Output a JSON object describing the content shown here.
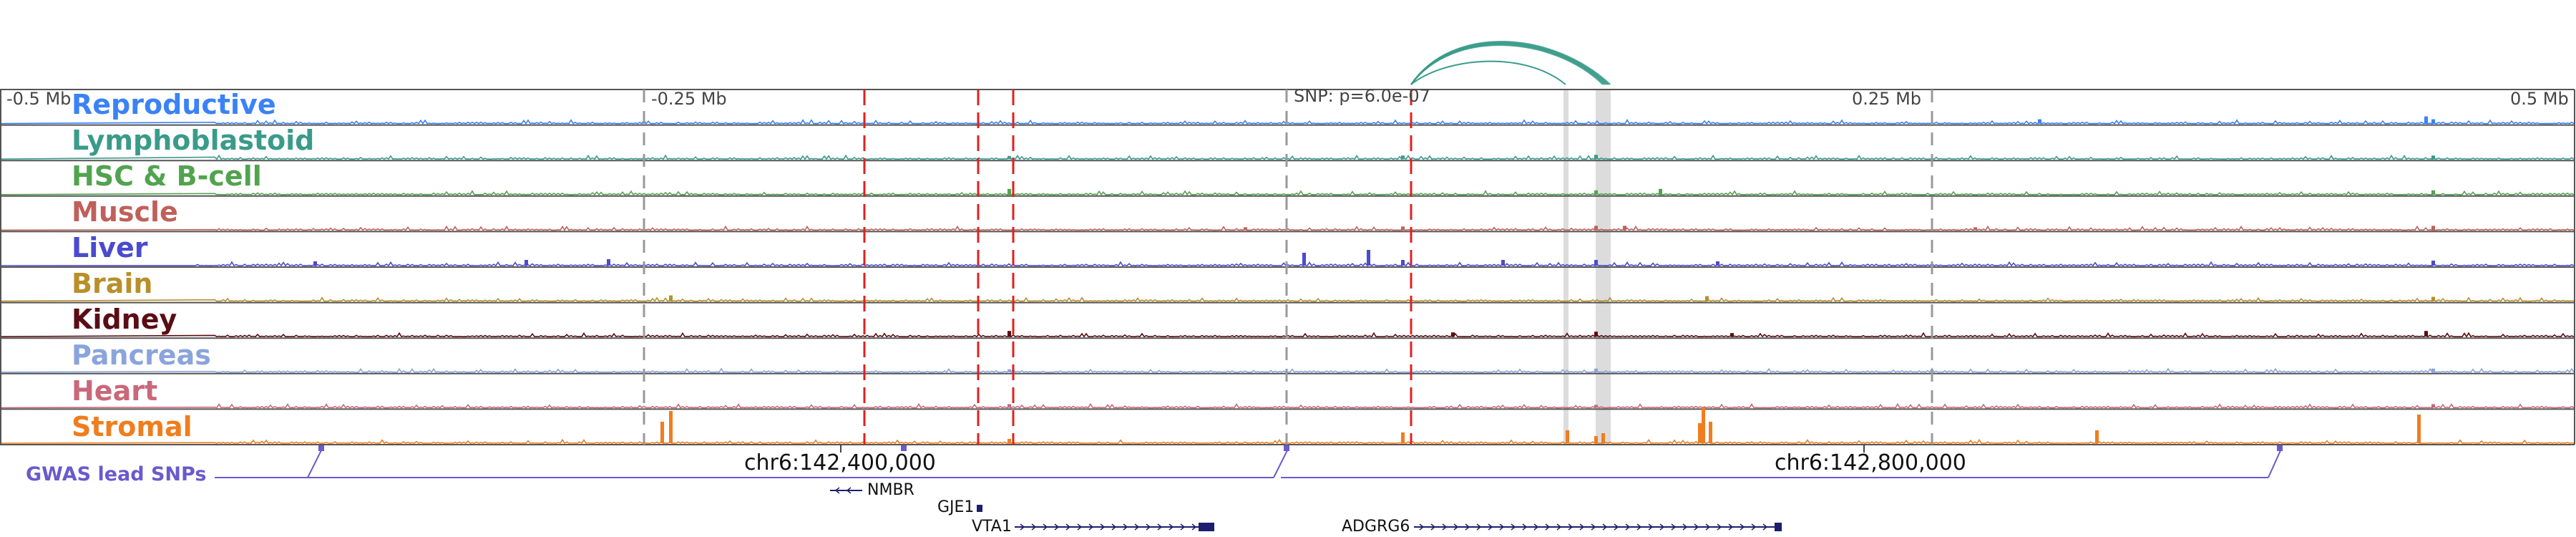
{
  "axis": {
    "left": "-0.5 Mb",
    "left_mid": "-0.25 Mb",
    "snp": "SNP: p=6.0e-07",
    "right_mid": "0.25 Mb",
    "right": "0.5 Mb"
  },
  "tracks": [
    {
      "name": "Reproductive",
      "color": "#3b82f6"
    },
    {
      "name": "Lymphoblastoid",
      "color": "#3a9b8a"
    },
    {
      "name": "HSC & B-cell",
      "color": "#52a34f"
    },
    {
      "name": "Muscle",
      "color": "#c0605a"
    },
    {
      "name": "Liver",
      "color": "#4b4bcf"
    },
    {
      "name": "Brain",
      "color": "#b8902a"
    },
    {
      "name": "Kidney",
      "color": "#5a0d14"
    },
    {
      "name": "Pancreas",
      "color": "#8aa4dc"
    },
    {
      "name": "Heart",
      "color": "#c9687a"
    },
    {
      "name": "Stromal",
      "color": "#f07d1e"
    }
  ],
  "gwas": {
    "label": "GWAS lead SNPs",
    "color": "#6a5acd"
  },
  "coordinates": [
    "chr6:142,400,000",
    "chr6:142,800,000"
  ],
  "genes": [
    "NMBR",
    "GJE1",
    "VTA1",
    "ADGRG6"
  ],
  "colors": {
    "border": "#555555",
    "red_line": "#e02020",
    "gray_line": "#999999",
    "highlight": "#d8d8d8",
    "arc": "#3a9b8a",
    "gene": "#1e1e6e"
  }
}
